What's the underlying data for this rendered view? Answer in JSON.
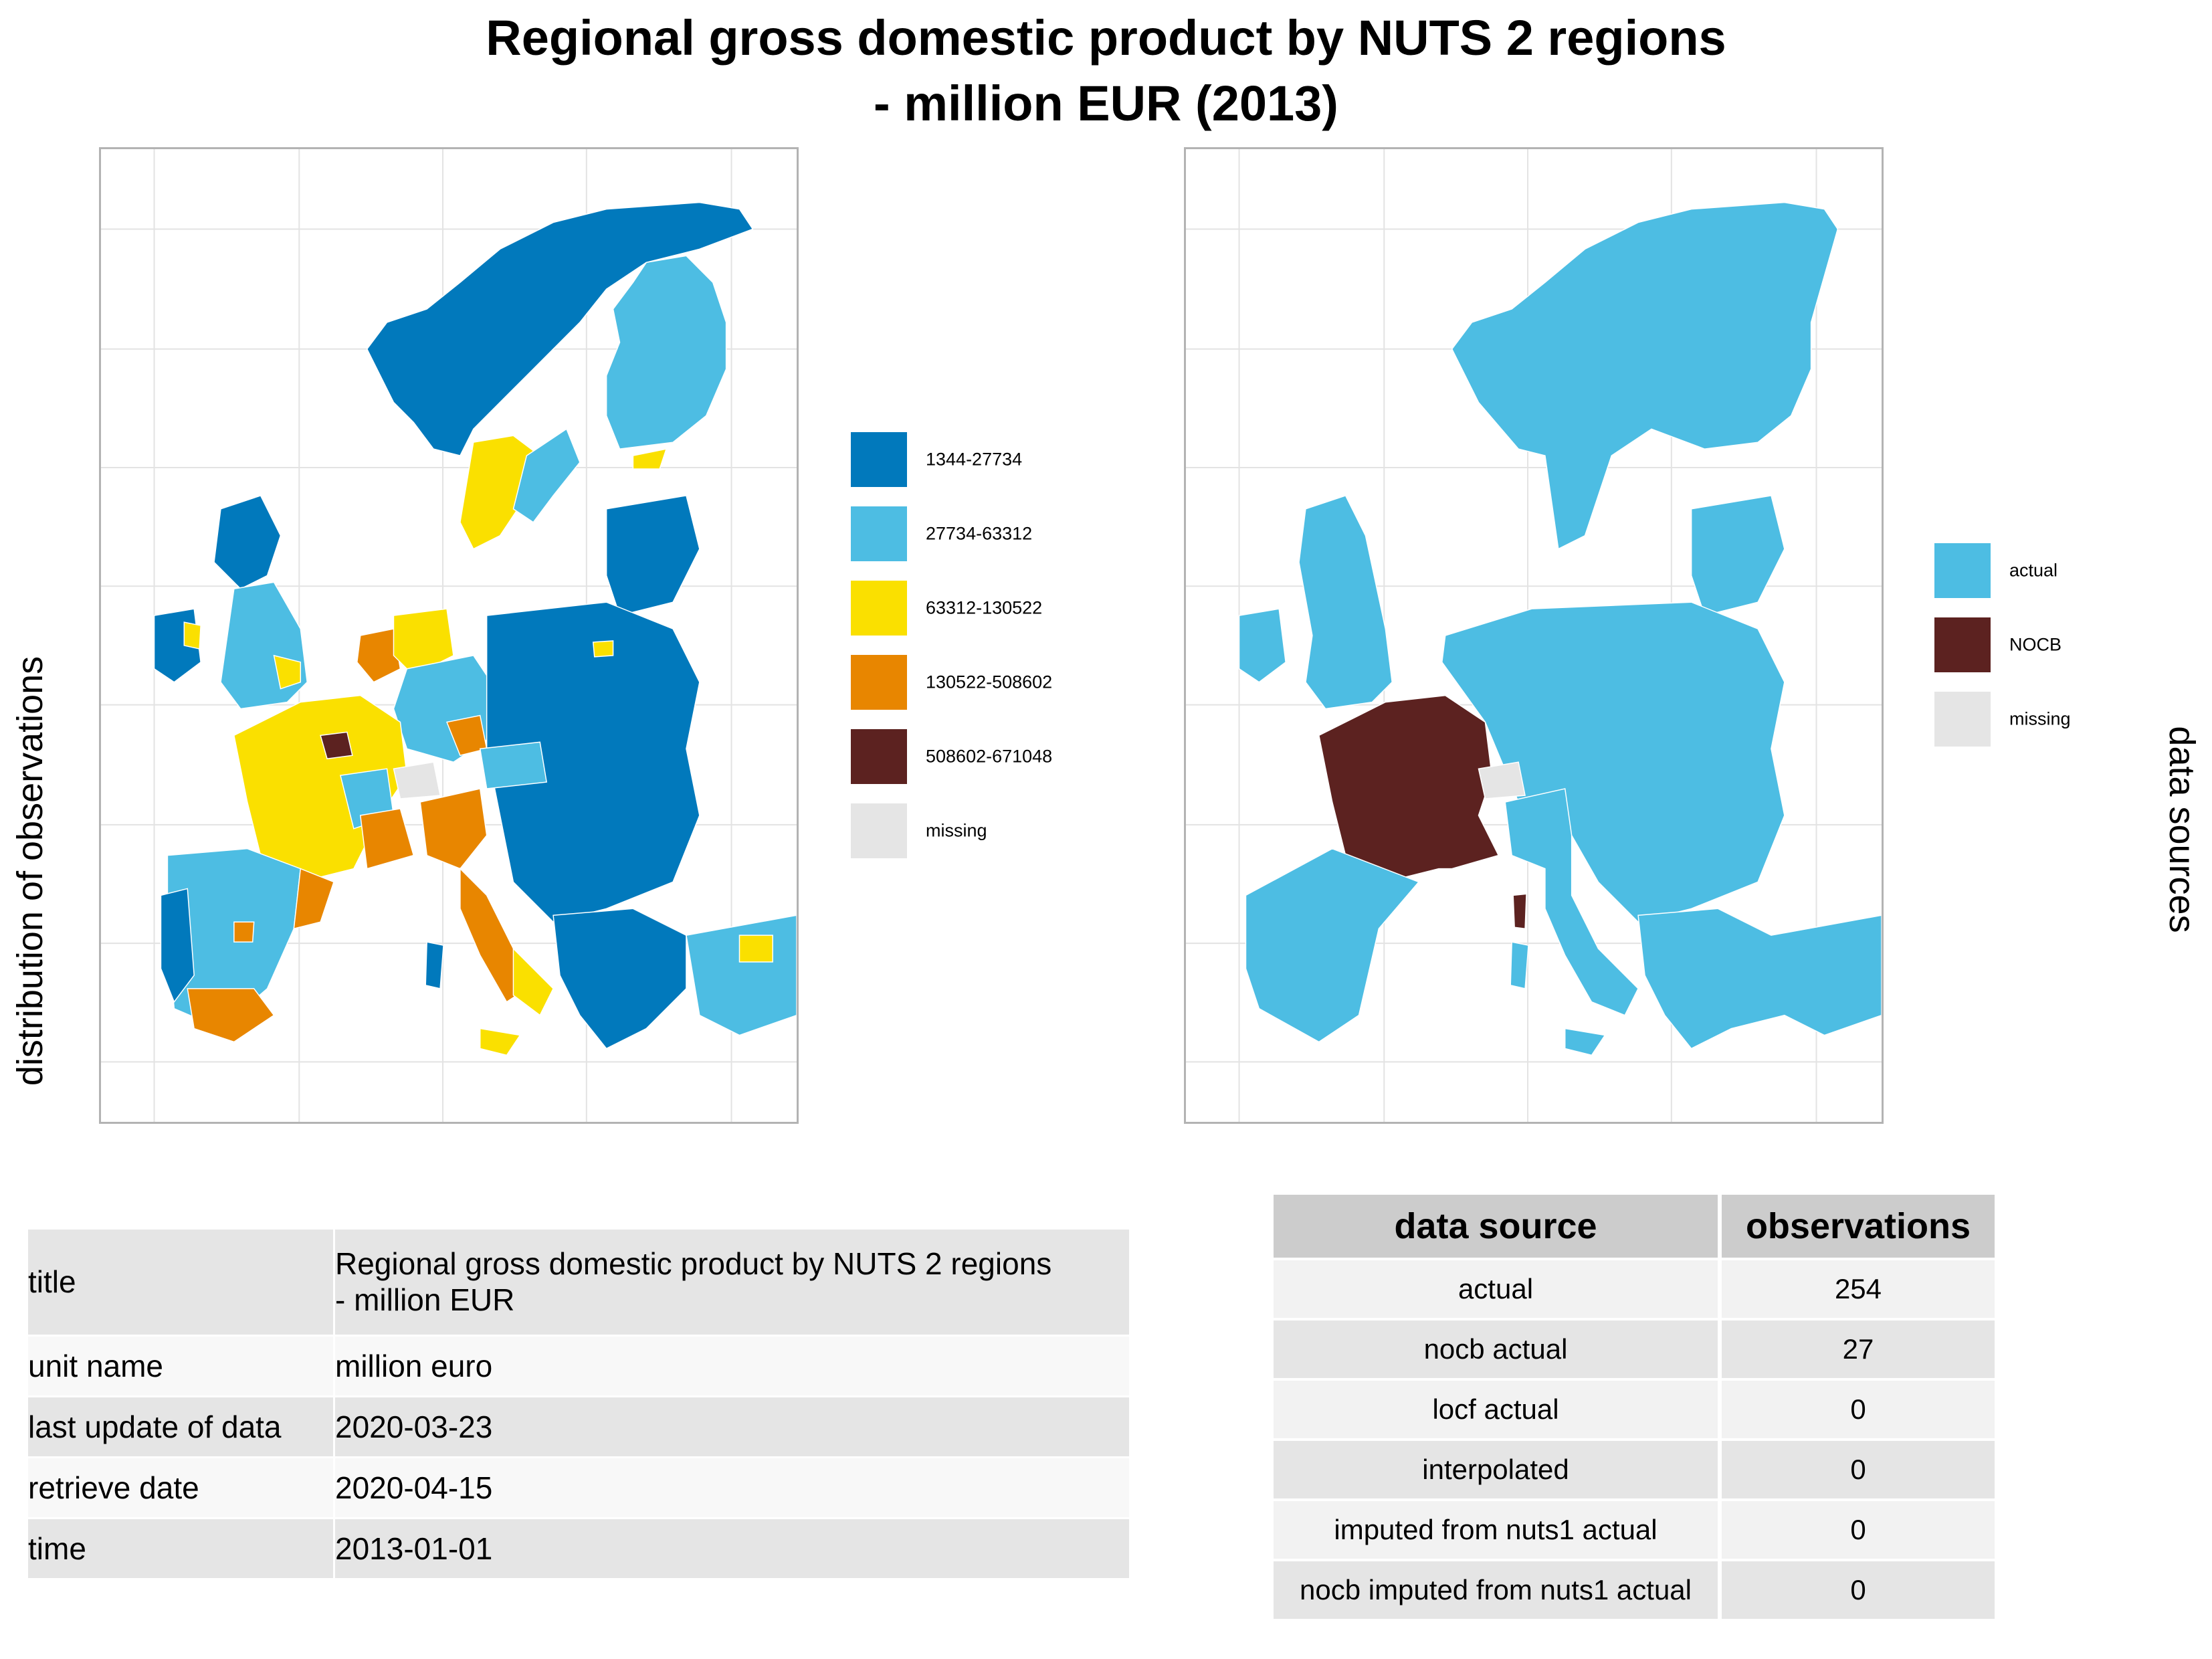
{
  "title_line1": "Regional gross domestic product by NUTS 2 regions",
  "title_line2": "- million EUR (2013)",
  "left_panel": {
    "axis_label": "distribution of observations",
    "legend": [
      {
        "label": "1344-27734",
        "color": "#0179bc"
      },
      {
        "label": "27734-63312",
        "color": "#4dbde3"
      },
      {
        "label": "63312-130522",
        "color": "#fae000"
      },
      {
        "label": "130522-508602",
        "color": "#e88600"
      },
      {
        "label": "508602-671048",
        "color": "#5c2220"
      },
      {
        "label": "missing",
        "color": "#e5e5e5"
      }
    ]
  },
  "right_panel": {
    "axis_label": "data sources",
    "legend": [
      {
        "label": "actual",
        "color": "#4dbde3"
      },
      {
        "label": "NOCB",
        "color": "#5c2220"
      },
      {
        "label": "missing",
        "color": "#e5e5e5"
      }
    ]
  },
  "metadata_table": [
    {
      "key": "title",
      "value_line1": "Regional gross domestic product by NUTS 2 regions",
      "value_line2": "- million EUR"
    },
    {
      "key": "unit name",
      "value_line1": "million euro",
      "value_line2": ""
    },
    {
      "key": "last update of data",
      "value_line1": "2020-03-23",
      "value_line2": ""
    },
    {
      "key": "retrieve date",
      "value_line1": "2020-04-15",
      "value_line2": ""
    },
    {
      "key": "time",
      "value_line1": "2013-01-01",
      "value_line2": ""
    }
  ],
  "source_table": {
    "headers": [
      "data source",
      "observations"
    ],
    "rows": [
      {
        "source": "actual",
        "observations": "254"
      },
      {
        "source": "nocb actual",
        "observations": "27"
      },
      {
        "source": "locf actual",
        "observations": "0"
      },
      {
        "source": "interpolated",
        "observations": "0"
      },
      {
        "source": "imputed from nuts1 actual",
        "observations": "0"
      },
      {
        "source": "nocb imputed from nuts1 actual",
        "observations": "0"
      }
    ]
  }
}
